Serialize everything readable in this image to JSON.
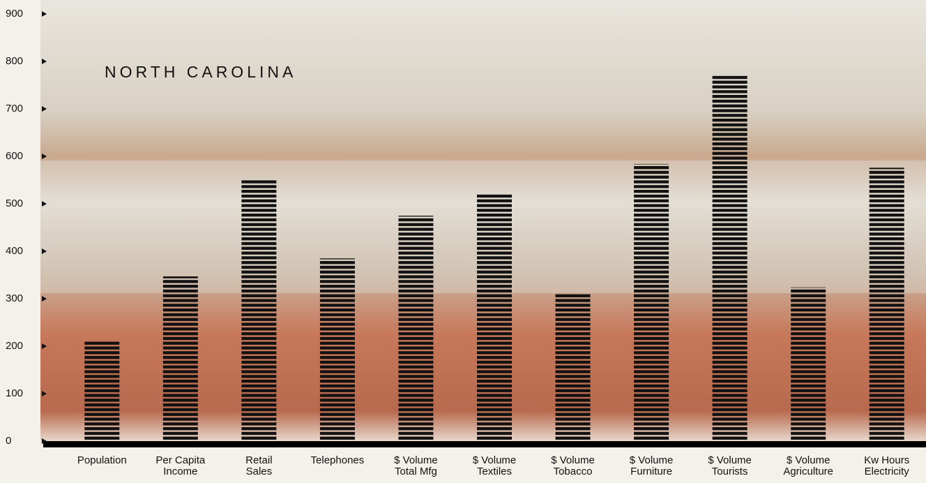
{
  "chart_data": {
    "type": "bar",
    "title": "NORTH CAROLINA",
    "categories": [
      "Population",
      "Per Capita\nIncome",
      "Retail\nSales",
      "Telephones",
      "$ Volume\nTotal Mfg",
      "$ Volume\nTextiles",
      "$ Volume\nTobacco",
      "$ Volume\nFurniture",
      "$ Volume\nTourists",
      "$ Volume\nAgriculture",
      "Kw Hours\nElectricity"
    ],
    "values": [
      210,
      347,
      551,
      385,
      475,
      522,
      310,
      584,
      772,
      324,
      576
    ],
    "color": "#111111",
    "ylim": [
      0,
      900
    ],
    "yticks": [
      0,
      100,
      200,
      300,
      400,
      500,
      600,
      700,
      800,
      900
    ]
  }
}
